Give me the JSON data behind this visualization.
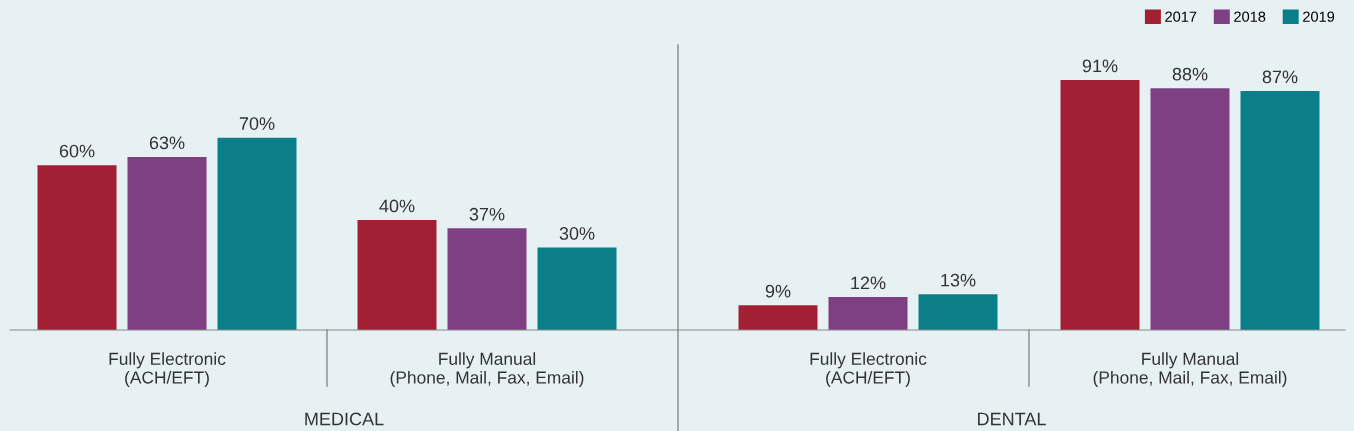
{
  "chart_data": [
    {
      "type": "bar",
      "categories": [
        "Fully Electronic\n(ACH/EFT)",
        "Fully Manual\n(Phone, Mail, Fax, Email)"
      ],
      "xlabel": "MEDICAL",
      "legend": false,
      "series": [
        {
          "color": "#a31f34",
          "values": [
            60,
            40
          ],
          "value_labels": [
            "60%",
            "40%"
          ]
        },
        {
          "color": "#7f3f83",
          "values": [
            63,
            37
          ],
          "value_labels": [
            "63%",
            "37%"
          ]
        },
        {
          "color": "#0a7f8a",
          "values": [
            70,
            30
          ],
          "value_labels": [
            "70%",
            "30%"
          ]
        }
      ]
    },
    {
      "type": "bar",
      "categories": [
        "Fully Electronic\n(ACH/EFT)",
        "Fully Manual\n(Phone, Mail, Fax, Email)"
      ],
      "xlabel": "DENTAL",
      "legend": "top right",
      "series": [
        {
          "name": "2017",
          "color": "#a31f34",
          "values": [
            9,
            91
          ],
          "value_labels": [
            "9%",
            "91%"
          ]
        },
        {
          "name": "2018",
          "color": "#7f3f83",
          "values": [
            12,
            88
          ],
          "value_labels": [
            "12%",
            "88%"
          ]
        },
        {
          "name": "2019",
          "color": "#0a7f8a",
          "values": [
            13,
            87
          ],
          "value_labels": [
            "13%",
            "87%"
          ]
        }
      ]
    }
  ]
}
